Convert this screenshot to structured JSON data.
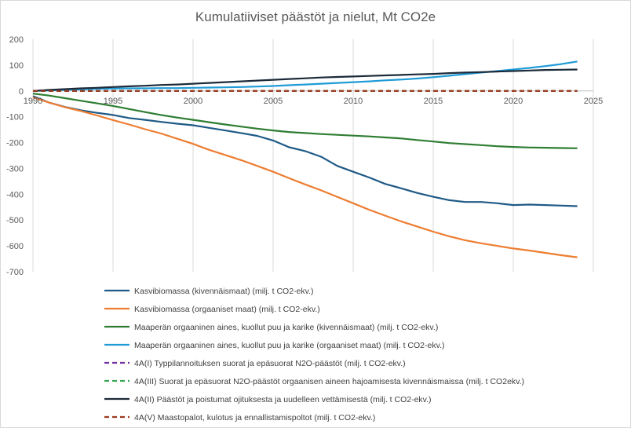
{
  "chart_data": {
    "type": "line",
    "title": "Kumulatiiviset päästöt ja nielut, Mt CO2e",
    "xlabel": "",
    "ylabel": "",
    "xlim": [
      1990,
      2025
    ],
    "ylim": [
      -700,
      200
    ],
    "x_ticks": [
      1990,
      1995,
      2000,
      2005,
      2010,
      2015,
      2020,
      2025
    ],
    "y_ticks": [
      200,
      100,
      0,
      -100,
      -200,
      -300,
      -400,
      -500,
      -600,
      -700
    ],
    "grid": "vertical",
    "legend_position": "bottom",
    "x": [
      1990,
      1991,
      1992,
      1993,
      1994,
      1995,
      1996,
      1997,
      1998,
      1999,
      2000,
      2001,
      2002,
      2003,
      2004,
      2005,
      2006,
      2007,
      2008,
      2009,
      2010,
      2011,
      2012,
      2013,
      2014,
      2015,
      2016,
      2017,
      2018,
      2019,
      2020,
      2021,
      2022,
      2023,
      2024
    ],
    "series": [
      {
        "name": "Kasvibiomassa (kivennäismaat) (milj. t CO2-ekv.)",
        "color": "#1f5a86",
        "dash": "solid",
        "values": [
          -20,
          -45,
          -62,
          -75,
          -85,
          -93,
          -105,
          -112,
          -120,
          -127,
          -133,
          -143,
          -153,
          -163,
          -174,
          -192,
          -218,
          -233,
          -255,
          -290,
          -313,
          -335,
          -360,
          -377,
          -395,
          -410,
          -423,
          -430,
          -430,
          -435,
          -442,
          -440,
          -442,
          -444,
          -446
        ]
      },
      {
        "name": "Kasvibiomassa (orgaaniset maat) (milj. t CO2-ekv.)",
        "color": "#ed7d31",
        "dash": "solid",
        "values": [
          -25,
          -45,
          -63,
          -78,
          -95,
          -113,
          -130,
          -148,
          -165,
          -185,
          -205,
          -228,
          -248,
          -268,
          -290,
          -313,
          -338,
          -362,
          -385,
          -410,
          -435,
          -460,
          -483,
          -505,
          -525,
          -545,
          -563,
          -578,
          -590,
          -600,
          -610,
          -618,
          -627,
          -636,
          -644
        ]
      },
      {
        "name": "Maaperän orgaaninen aines, kuollut puu ja karike (kivennäismaat) (milj. t CO2-ekv.)",
        "color": "#2e7d32",
        "dash": "solid",
        "values": [
          -10,
          -18,
          -28,
          -38,
          -48,
          -58,
          -70,
          -82,
          -93,
          -103,
          -112,
          -121,
          -130,
          -138,
          -146,
          -153,
          -159,
          -163,
          -167,
          -170,
          -173,
          -176,
          -180,
          -184,
          -190,
          -196,
          -202,
          -206,
          -210,
          -214,
          -217,
          -219,
          -220,
          -221,
          -222
        ]
      },
      {
        "name": "Maaperän orgaaninen aines, kuollut puu ja karike (orgaaniset maat) (milj. t CO2-ekv.)",
        "color": "#1f9bd7",
        "dash": "solid",
        "values": [
          0,
          2,
          4,
          6,
          8,
          9,
          10,
          10,
          11,
          11,
          12,
          13,
          14,
          15,
          17,
          19,
          22,
          25,
          28,
          31,
          34,
          37,
          41,
          44,
          48,
          53,
          59,
          65,
          71,
          77,
          83,
          89,
          96,
          104,
          114
        ]
      },
      {
        "name": "4A(I) Typpilannoituksen suorat ja epäsuorat N2O-päästöt (milj. t CO2-ekv.)",
        "color": "#7030a0",
        "dash": "dashed",
        "values": [
          0,
          0,
          0,
          0,
          0,
          0,
          0,
          0,
          0,
          0,
          0,
          0,
          0,
          0,
          0,
          0,
          0,
          0,
          0,
          0,
          0,
          0,
          0,
          0,
          0,
          0,
          0,
          0,
          0,
          0,
          0,
          0,
          0,
          0,
          0
        ]
      },
      {
        "name": "4A(III) Suorat ja epäsuorat N2O-päästöt orgaanisen aineen hajoamisesta kivennäismaissa (milj. t CO2ekv.)",
        "color": "#3aa655",
        "dash": "dashed",
        "values": [
          0,
          0,
          0,
          0,
          0,
          0,
          0,
          0,
          0,
          0,
          0,
          0,
          0,
          0,
          0,
          0,
          0,
          0,
          0,
          0,
          0,
          0,
          0,
          0,
          0,
          0,
          0,
          0,
          0,
          0,
          0,
          0,
          0,
          0,
          0
        ]
      },
      {
        "name": "4A(II) Päästöt ja poistumat ojituksesta ja uudelleen vettämisestä (milj. t CO2-ekv.)",
        "color": "#1c2b3a",
        "dash": "solid",
        "values": [
          0,
          4,
          7,
          10,
          12,
          15,
          18,
          20,
          23,
          25,
          28,
          31,
          34,
          37,
          40,
          43,
          46,
          49,
          52,
          54,
          56,
          58,
          60,
          62,
          64,
          66,
          69,
          71,
          73,
          75,
          77,
          79,
          81,
          82,
          83
        ]
      },
      {
        "name": "4A(V) Maastopalot, kulotus ja ennallistamispoltot (milj. t CO2-ekv.)",
        "color": "#a0391e",
        "dash": "dashed",
        "values": [
          0,
          0,
          0,
          0,
          0,
          0,
          0,
          0,
          0,
          0,
          0,
          0,
          0,
          0,
          0,
          0,
          0,
          0,
          0,
          0,
          0,
          0,
          0,
          0,
          0,
          0,
          0,
          0,
          0,
          0,
          0,
          0,
          0,
          0,
          0
        ]
      }
    ]
  }
}
